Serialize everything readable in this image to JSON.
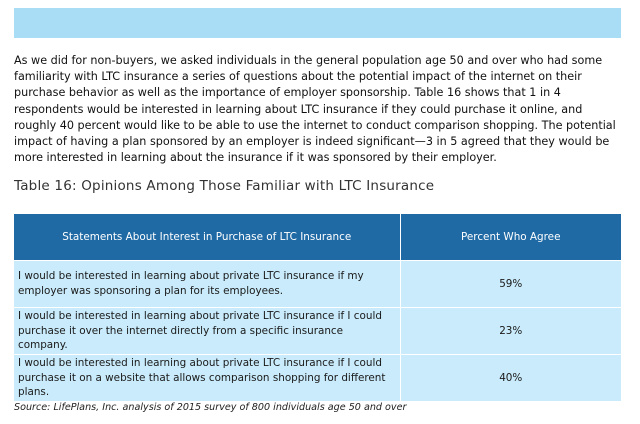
{
  "intro_paragraph": "As we did for non-buyers, we asked individuals in the general population age 50 and over who had some familiarity with LTC insurance a series of questions about the potential impact of the internet on their purchase behavior as well as the importance of employer sponsorship. Table 16 shows that 1 in 4 respondents would be interested in learning about LTC insurance if they could purchase it online, and roughly 40 percent would like to be able to use the internet to conduct comparison shopping. The potential impact of having a plan sponsored by an employer is indeed significant—3 in 5 agreed that they would be more interested in learning about the insurance if it was sponsored by their employer.",
  "table": {
    "title": "Table 16: Opinions Among Those Familiar with LTC Insurance",
    "headers": [
      "Statements About Interest in Purchase of LTC Insurance",
      "Percent Who Agree"
    ],
    "rows": [
      {
        "statement": "I would be interested in learning about private LTC insurance if my employer was sponsoring a plan for its employees.",
        "percent": "59%"
      },
      {
        "statement": "I would be interested in learning about private LTC insurance if I could purchase it over the internet directly from a specific insurance company.",
        "percent": "23%"
      },
      {
        "statement": "I would be interested in learning about private LTC insurance if I could purchase it on a website that allows comparison shopping for different plans.",
        "percent": "40%"
      }
    ],
    "source": "Source: LifePlans, Inc. analysis of 2015 survey of 800 individuals age 50 and over"
  },
  "colors": {
    "banner": "#a9dcf5",
    "header_fill": "#1f6aa5",
    "row_fill": "#c9ebfb"
  }
}
